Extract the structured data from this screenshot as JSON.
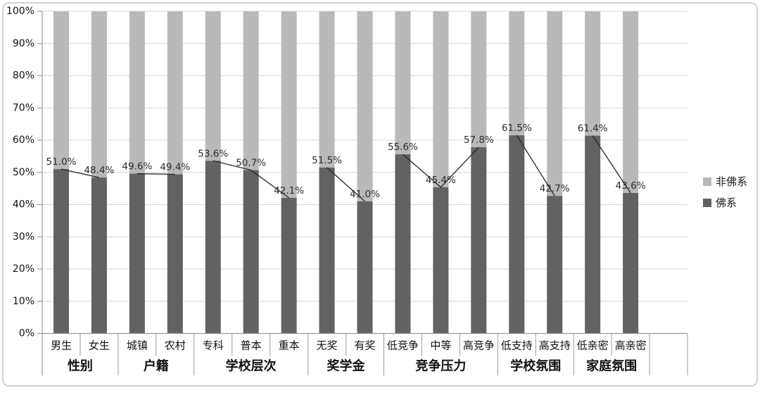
{
  "chart_data": {
    "type": "bar",
    "variant": "100-percent-stacked-columns-with-line-overlay",
    "title": "",
    "categories": [
      "男生",
      "女生",
      "城镇",
      "农村",
      "专科",
      "普本",
      "重本",
      "无奖",
      "有奖",
      "低竞争",
      "中等",
      "高竞争",
      "低支持",
      "高支持",
      "低亲密",
      "高亲密"
    ],
    "groups": [
      {
        "label": "性别",
        "span": 2
      },
      {
        "label": "户籍",
        "span": 2
      },
      {
        "label": "学校层次",
        "span": 3
      },
      {
        "label": "奖学金",
        "span": 2
      },
      {
        "label": "竞争压力",
        "span": 3
      },
      {
        "label": "学校氛围",
        "span": 2
      },
      {
        "label": "家庭氛围",
        "span": 2
      }
    ],
    "series": [
      {
        "name": "非佛系",
        "color": "#b9b9b9",
        "role": "upper-segment",
        "values_rule": "100 minus 佛系"
      },
      {
        "name": "佛系",
        "color": "#626262",
        "role": "lower-segment",
        "values": [
          51.0,
          48.4,
          49.6,
          49.4,
          53.6,
          50.7,
          42.1,
          51.5,
          41.0,
          55.6,
          45.4,
          57.8,
          61.5,
          42.7,
          61.4,
          43.6
        ]
      }
    ],
    "data_labels": [
      "51.0%",
      "48.4%",
      "49.6%",
      "49.4%",
      "53.6%",
      "50.7%",
      "42.1%",
      "51.5%",
      "41.0%",
      "55.6%",
      "45.4%",
      "57.8%",
      "61.5%",
      "42.7%",
      "61.4%",
      "43.6%"
    ],
    "y_ticks": [
      "0%",
      "10%",
      "20%",
      "30%",
      "40%",
      "50%",
      "60%",
      "70%",
      "80%",
      "90%",
      "100%"
    ],
    "ylim": [
      0,
      100
    ],
    "grid": true,
    "legend_position": "right",
    "line_overlay": "connects tops of 佛系 bars within each category group",
    "colors": {
      "grid": "#d6d6d6",
      "axis": "#9b9b9b",
      "divider": "#a5a5a5",
      "line": "#262626",
      "tick_text": "#111111",
      "category_text": "#111111",
      "group_text": "#111111",
      "data_label_text": "#2b2b2b"
    }
  }
}
